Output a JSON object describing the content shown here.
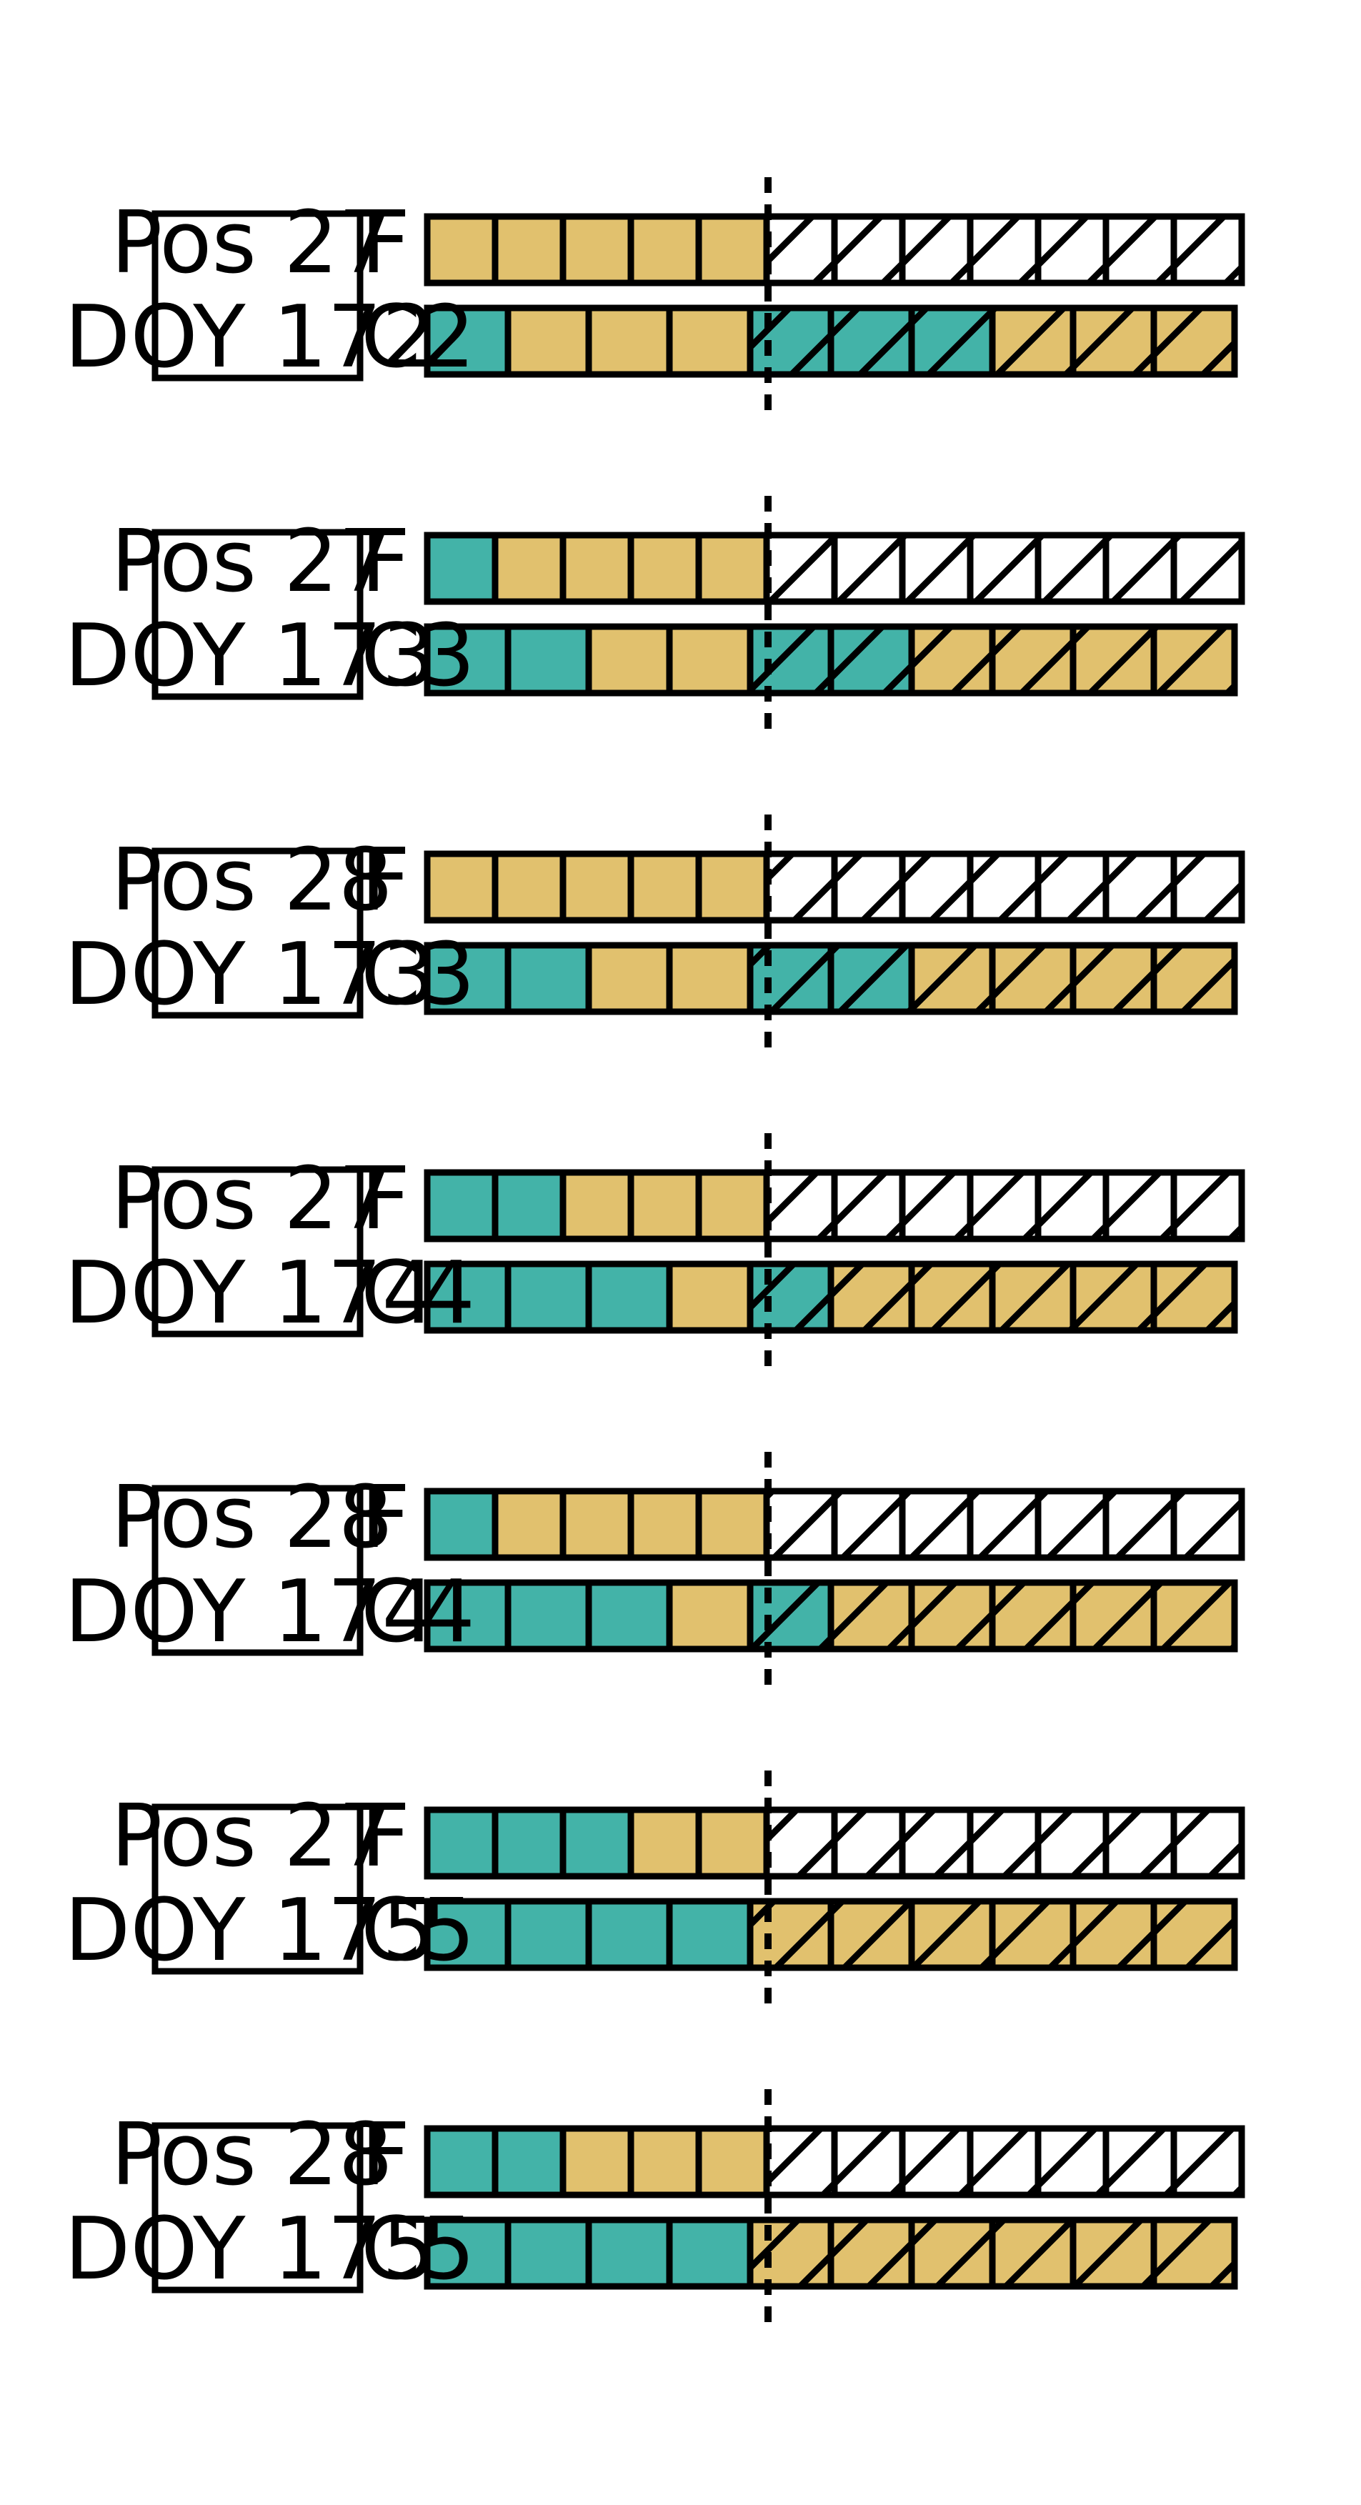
{
  "colors": {
    "teal": "#43B3A8",
    "gold": "#E1C16E",
    "empty": "#FFFFFF",
    "stroke": "#000000"
  },
  "groups": [
    {
      "label_line1": "Pos 27",
      "label_line2": "DOY 172",
      "top_code": "F",
      "bottom_code": "C2",
      "top_cells": [
        "gold",
        "gold",
        "gold",
        "gold",
        "gold",
        "empty",
        "empty",
        "empty",
        "empty",
        "empty",
        "empty",
        "empty"
      ],
      "bottom_cells": [
        "teal",
        "gold",
        "gold",
        "gold",
        "teal",
        "teal",
        "teal",
        "gold",
        "gold",
        "gold"
      ]
    },
    {
      "label_line1": "Pos 27",
      "label_line2": "DOY 173",
      "top_code": "F",
      "bottom_code": "C3",
      "top_cells": [
        "teal",
        "gold",
        "gold",
        "gold",
        "gold",
        "empty",
        "empty",
        "empty",
        "empty",
        "empty",
        "empty",
        "empty"
      ],
      "bottom_cells": [
        "teal",
        "teal",
        "gold",
        "gold",
        "teal",
        "teal",
        "gold",
        "gold",
        "gold",
        "gold"
      ]
    },
    {
      "label_line1": "Pos 28",
      "label_line2": "DOY 173",
      "top_code": "F",
      "bottom_code": "C3",
      "top_cells": [
        "gold",
        "gold",
        "gold",
        "gold",
        "gold",
        "empty",
        "empty",
        "empty",
        "empty",
        "empty",
        "empty",
        "empty"
      ],
      "bottom_cells": [
        "teal",
        "teal",
        "gold",
        "gold",
        "teal",
        "teal",
        "gold",
        "gold",
        "gold",
        "gold"
      ]
    },
    {
      "label_line1": "Pos 27",
      "label_line2": "DOY 174",
      "top_code": "F",
      "bottom_code": "C4",
      "top_cells": [
        "teal",
        "teal",
        "gold",
        "gold",
        "gold",
        "empty",
        "empty",
        "empty",
        "empty",
        "empty",
        "empty",
        "empty"
      ],
      "bottom_cells": [
        "teal",
        "teal",
        "teal",
        "gold",
        "teal",
        "gold",
        "gold",
        "gold",
        "gold",
        "gold"
      ]
    },
    {
      "label_line1": "Pos 28",
      "label_line2": "DOY 174",
      "top_code": "F",
      "bottom_code": "C4",
      "top_cells": [
        "teal",
        "gold",
        "gold",
        "gold",
        "gold",
        "empty",
        "empty",
        "empty",
        "empty",
        "empty",
        "empty",
        "empty"
      ],
      "bottom_cells": [
        "teal",
        "teal",
        "teal",
        "gold",
        "teal",
        "gold",
        "gold",
        "gold",
        "gold",
        "gold"
      ]
    },
    {
      "label_line1": "Pos 27",
      "label_line2": "DOY 175",
      "top_code": "F",
      "bottom_code": "C5",
      "top_cells": [
        "teal",
        "teal",
        "teal",
        "gold",
        "gold",
        "empty",
        "empty",
        "empty",
        "empty",
        "empty",
        "empty",
        "empty"
      ],
      "bottom_cells": [
        "teal",
        "teal",
        "teal",
        "teal",
        "gold",
        "gold",
        "gold",
        "gold",
        "gold",
        "gold"
      ]
    },
    {
      "label_line1": "Pos 28",
      "label_line2": "DOY 175",
      "top_code": "F",
      "bottom_code": "C5",
      "top_cells": [
        "teal",
        "teal",
        "gold",
        "gold",
        "gold",
        "empty",
        "empty",
        "empty",
        "empty",
        "empty",
        "empty",
        "empty"
      ],
      "bottom_cells": [
        "teal",
        "teal",
        "teal",
        "teal",
        "gold",
        "gold",
        "gold",
        "gold",
        "gold",
        "gold"
      ]
    }
  ]
}
